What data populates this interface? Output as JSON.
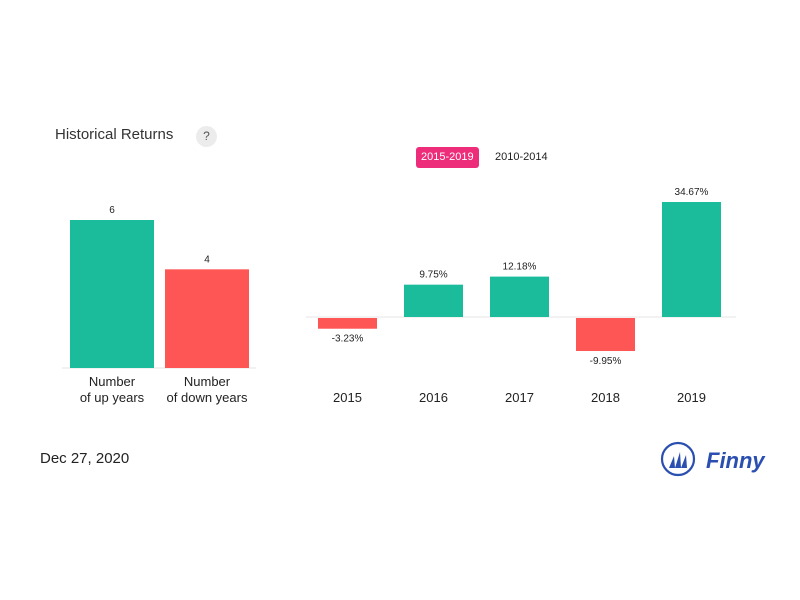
{
  "header": {
    "title": "Historical Returns",
    "help_label": "?"
  },
  "tabs": [
    {
      "label": "2015-2019",
      "active": true
    },
    {
      "label": "2010-2014",
      "active": false
    }
  ],
  "footer": {
    "date": "Dec 27, 2020",
    "brand": "Finny"
  },
  "colors": {
    "up": "#1abc9c",
    "down": "#fe5555",
    "tab_active": "#ee2d7a",
    "brand": "#2a4fb0"
  },
  "chart_data": [
    {
      "type": "bar",
      "categories": [
        [
          "Number",
          "of up years"
        ],
        [
          "Number",
          "of down years"
        ]
      ],
      "values": [
        6,
        4
      ],
      "value_labels": [
        "6",
        "4"
      ],
      "ylim": [
        0,
        6
      ]
    },
    {
      "type": "bar",
      "categories": [
        "2015",
        "2016",
        "2017",
        "2018",
        "2019"
      ],
      "values": [
        -3.23,
        9.75,
        12.18,
        -9.95,
        34.67
      ],
      "value_labels": [
        "-3.23%",
        "9.75%",
        "12.18%",
        "-9.95%",
        "34.67%"
      ],
      "unit": "%"
    }
  ]
}
